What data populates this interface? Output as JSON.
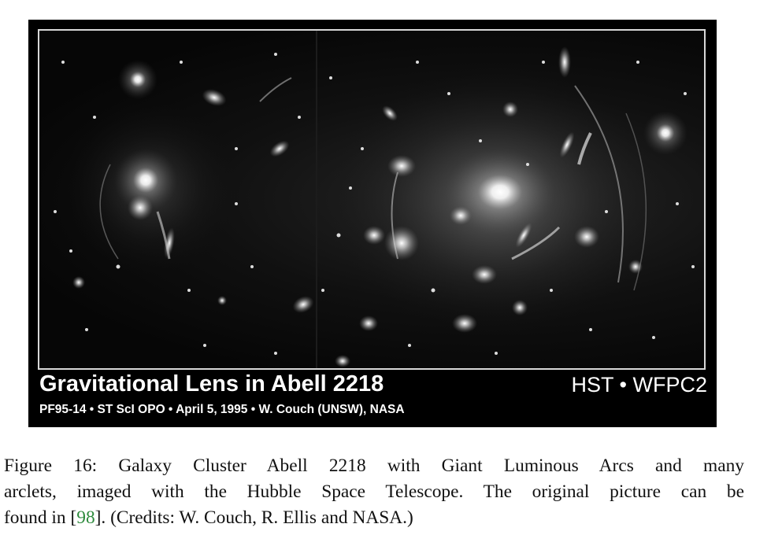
{
  "figure": {
    "image_description_icon": "galaxy-cluster-photo",
    "plate_title": "Gravitational Lens in Abell 2218",
    "plate_instrument": "HST • WFPC2",
    "plate_credit": "PF95-14 • ST ScI  OPO • April 5, 1995 • W. Couch (UNSW), NASA",
    "caption": {
      "line1": "Figure 16: Galaxy Cluster Abell 2218 with Giant Luminous Arcs and many",
      "line2": "arclets, imaged with the Hubble Space Telescope. The original picture can be",
      "line3_pre": "found in [",
      "line3_ref": "98",
      "line3_post": "]. (Credits: W. Couch, R. Ellis and NASA.)"
    },
    "colors": {
      "plate_background": "#000000",
      "citation_link": "#2e8b3d"
    }
  }
}
